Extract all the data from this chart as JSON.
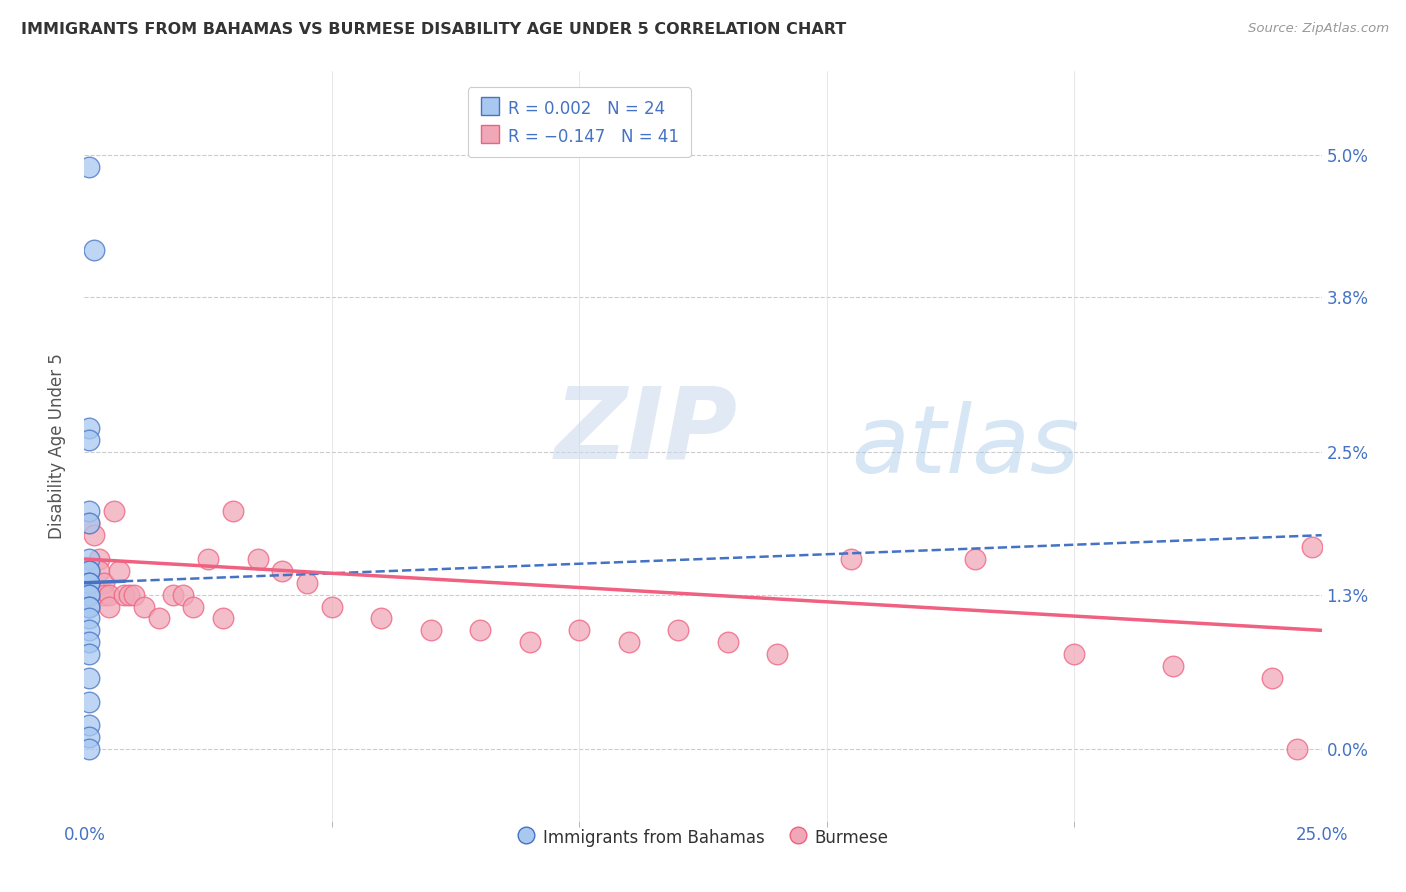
{
  "title": "IMMIGRANTS FROM BAHAMAS VS BURMESE DISABILITY AGE UNDER 5 CORRELATION CHART",
  "source": "Source: ZipAtlas.com",
  "ylabel": "Disability Age Under 5",
  "ytick_labels": [
    "0.0%",
    "1.3%",
    "2.5%",
    "3.8%",
    "5.0%"
  ],
  "ytick_values": [
    0.0,
    0.013,
    0.025,
    0.038,
    0.05
  ],
  "xmin": 0.0,
  "xmax": 0.25,
  "ymin": -0.006,
  "ymax": 0.057,
  "color_bahamas": "#a8c8f0",
  "color_burmese": "#f0a8b8",
  "color_line_bahamas": "#4472c4",
  "color_line_burmese": "#f06080",
  "color_text": "#4472c4",
  "bahamas_x": [
    0.001,
    0.002,
    0.001,
    0.001,
    0.001,
    0.001,
    0.001,
    0.001,
    0.001,
    0.001,
    0.001,
    0.001,
    0.001,
    0.001,
    0.001,
    0.001,
    0.001,
    0.001,
    0.001,
    0.001,
    0.001,
    0.001,
    0.001,
    0.001
  ],
  "bahamas_y": [
    0.049,
    0.042,
    0.027,
    0.026,
    0.02,
    0.019,
    0.016,
    0.015,
    0.015,
    0.014,
    0.014,
    0.013,
    0.013,
    0.012,
    0.012,
    0.011,
    0.01,
    0.009,
    0.008,
    0.006,
    0.004,
    0.002,
    0.001,
    0.0
  ],
  "burmese_x": [
    0.001,
    0.002,
    0.003,
    0.003,
    0.004,
    0.004,
    0.005,
    0.005,
    0.006,
    0.007,
    0.008,
    0.009,
    0.01,
    0.012,
    0.015,
    0.018,
    0.02,
    0.022,
    0.025,
    0.028,
    0.03,
    0.035,
    0.04,
    0.045,
    0.05,
    0.06,
    0.07,
    0.08,
    0.09,
    0.1,
    0.11,
    0.12,
    0.13,
    0.14,
    0.155,
    0.18,
    0.2,
    0.22,
    0.24,
    0.245,
    0.248
  ],
  "burmese_y": [
    0.019,
    0.018,
    0.016,
    0.015,
    0.014,
    0.013,
    0.013,
    0.012,
    0.02,
    0.015,
    0.013,
    0.013,
    0.013,
    0.012,
    0.011,
    0.013,
    0.013,
    0.012,
    0.016,
    0.011,
    0.02,
    0.016,
    0.015,
    0.014,
    0.012,
    0.011,
    0.01,
    0.01,
    0.009,
    0.01,
    0.009,
    0.01,
    0.009,
    0.008,
    0.016,
    0.016,
    0.008,
    0.007,
    0.006,
    0.0,
    0.017
  ]
}
